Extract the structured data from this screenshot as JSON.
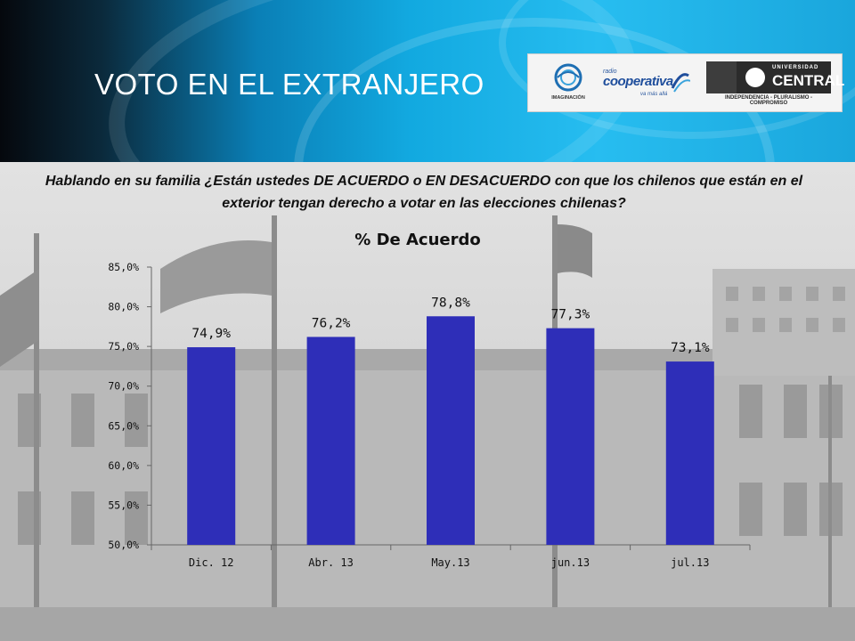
{
  "header": {
    "title": "VOTO EN EL EXTRANJERO",
    "logos": {
      "imaginacion": "IMAGINACIÓN",
      "cooperativa_radio": "radio",
      "cooperativa_name": "cooperativa",
      "cooperativa_tag": "va más allá",
      "ucentral_top": "UNIVERSIDAD",
      "ucentral_name": "CENTRAL",
      "ucentral_tagline": "INDEPENDENCIA - PLURALISMO - COMPROMISO"
    }
  },
  "question": "Hablando en su familia ¿Están ustedes DE ACUERDO o EN DESACUERDO con que los chilenos que están en el exterior tengan derecho a votar en las elecciones chilenas?",
  "colors": {
    "bar": "#2e2eb8",
    "axis": "#666666"
  },
  "chart_data": {
    "type": "bar",
    "title": "% De Acuerdo",
    "categories": [
      "Dic. 12",
      "Abr. 13",
      "May.13",
      "jun.13",
      "jul.13"
    ],
    "values": [
      74.9,
      76.2,
      78.8,
      77.3,
      73.1
    ],
    "data_labels": [
      "74,9%",
      "76,2%",
      "78,8%",
      "77,3%",
      "73,1%"
    ],
    "ylim": [
      50,
      85
    ],
    "yticks": [
      50,
      55,
      60,
      65,
      70,
      75,
      80,
      85
    ],
    "ytick_labels": [
      "50,0%",
      "55,0%",
      "60,0%",
      "65,0%",
      "70,0%",
      "75,0%",
      "80,0%",
      "85,0%"
    ],
    "xlabel": "",
    "ylabel": "",
    "grid": false,
    "legend": false
  }
}
